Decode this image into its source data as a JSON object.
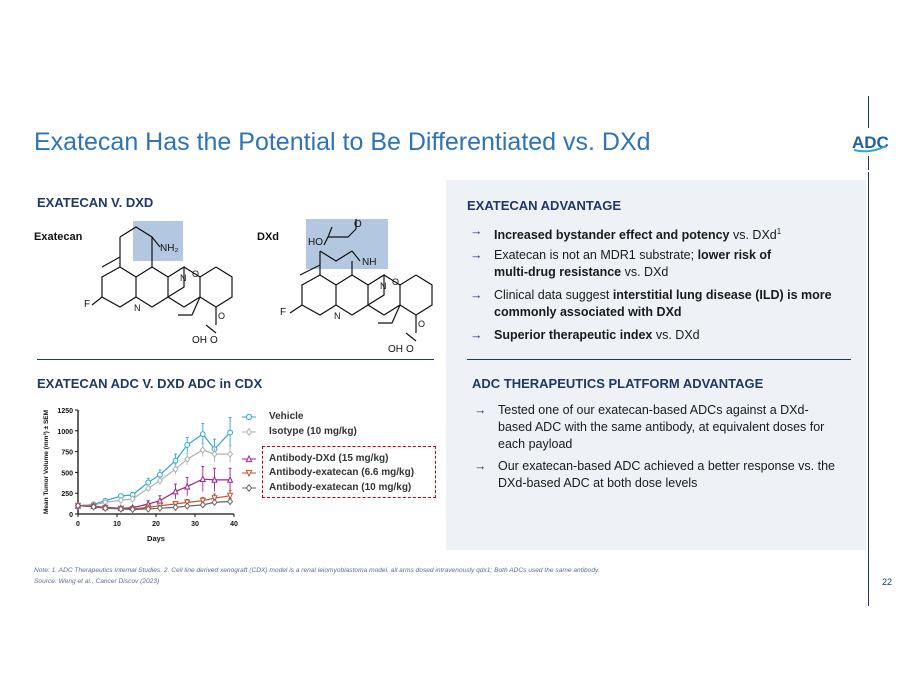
{
  "title": "Exatecan Has the Potential to Be Differentiated vs. DXd",
  "logo_text": "ADC",
  "left_top_heading": "EXATECAN V. DXD",
  "molecules": {
    "exatecan": {
      "label": "Exatecan",
      "group": "NH₂",
      "atoms": [
        "F",
        "N",
        "N",
        "O",
        "O",
        "OH",
        "O"
      ]
    },
    "dxd": {
      "label": "DXd",
      "group_ho": "HO",
      "group_o": "O",
      "group_nh": "NH",
      "atoms": [
        "F",
        "N",
        "N",
        "O",
        "O",
        "OH",
        "O"
      ]
    }
  },
  "left_bottom_heading": "EXATECAN ADC V. DXD ADC in CDX",
  "exatecan_advantage": {
    "heading": "EXATECAN ADVANTAGE",
    "items": [
      {
        "b1": "Increased bystander effect and potency",
        "t1": " vs. DXd",
        "sup": "1"
      },
      {
        "t1": "Exatecan is not an MDR1 substrate; ",
        "b1": "lower risk of multi-drug resistance",
        "t2": " vs. DXd"
      },
      {
        "t1": "Clinical data suggest ",
        "b1": "interstitial lung disease (ILD) is more commonly associated with DXd"
      },
      {
        "b1": "Superior therapeutic index",
        "t1": " vs. DXd"
      }
    ]
  },
  "platform_advantage": {
    "heading": "ADC THERAPEUTICS PLATFORM ADVANTAGE",
    "items": [
      "Tested one of our exatecan-based ADCs against a DXd-based ADC with the same antibody, at equivalent doses for each payload",
      "Our exatecan-based ADC achieved a better response vs. the DXd-based ADC at both dose levels"
    ]
  },
  "note": "Note: 1. ADC Therapeutics Internal Studies. 2. Cell line derived xenograft (CDX) model is a renal leiomyoblastoma model, all arms dosed intravenously qdx1; Both ADCs used the same antibody.",
  "source": "Source: Weng et al., Cancer Discov (2023)",
  "page_number": "22",
  "chart_data": {
    "type": "line",
    "xlabel": "Days",
    "ylabel": "Mean Tumor Volume (mm³) ± SEM",
    "xlim": [
      0,
      40
    ],
    "ylim": [
      0,
      1250
    ],
    "xticks": [
      0,
      10,
      20,
      30,
      40
    ],
    "yticks": [
      0,
      250,
      500,
      750,
      1000,
      1250
    ],
    "legend_placement": "right",
    "series": [
      {
        "name": "Vehicle",
        "color": "#2aa7d1",
        "marker": "circle",
        "x": [
          0,
          4,
          7,
          11,
          14,
          18,
          21,
          25,
          28,
          32,
          35,
          39
        ],
        "y": [
          100,
          115,
          160,
          215,
          230,
          380,
          470,
          640,
          830,
          960,
          780,
          980
        ],
        "err": [
          10,
          15,
          20,
          25,
          30,
          50,
          60,
          80,
          90,
          130,
          120,
          180
        ]
      },
      {
        "name": "Isotype (10 mg/kg)",
        "color": "#b0b0b0",
        "marker": "diamond",
        "x": [
          0,
          4,
          7,
          11,
          14,
          18,
          21,
          25,
          28,
          32,
          35,
          39
        ],
        "y": [
          100,
          110,
          140,
          165,
          180,
          310,
          400,
          540,
          660,
          770,
          720,
          720
        ],
        "err": [
          10,
          15,
          18,
          20,
          25,
          40,
          50,
          60,
          70,
          80,
          90,
          100
        ]
      },
      {
        "name": "Antibody-DXd (15 mg/kg)",
        "color": "#a0208f",
        "marker": "triangle",
        "x": [
          0,
          4,
          7,
          11,
          14,
          18,
          21,
          25,
          28,
          32,
          35,
          39
        ],
        "y": [
          100,
          95,
          80,
          70,
          75,
          120,
          160,
          270,
          330,
          420,
          410,
          410
        ],
        "err": [
          10,
          10,
          12,
          15,
          20,
          40,
          60,
          90,
          110,
          150,
          140,
          140
        ]
      },
      {
        "name": "Antibody-exatecan (6.6 mg/kg)",
        "color": "#c0502a",
        "marker": "triangle-down",
        "x": [
          0,
          4,
          7,
          11,
          14,
          18,
          21,
          25,
          28,
          32,
          35,
          39
        ],
        "y": [
          100,
          90,
          75,
          65,
          60,
          80,
          100,
          120,
          140,
          160,
          190,
          220
        ],
        "err": [
          10,
          10,
          10,
          12,
          15,
          20,
          25,
          30,
          35,
          40,
          50,
          60
        ]
      },
      {
        "name": "Antibody-exatecan (10 mg/kg)",
        "color": "#666666",
        "marker": "diamond",
        "x": [
          0,
          4,
          7,
          11,
          14,
          18,
          21,
          25,
          28,
          32,
          35,
          39
        ],
        "y": [
          100,
          85,
          70,
          60,
          55,
          60,
          70,
          80,
          95,
          110,
          140,
          150
        ],
        "err": [
          8,
          8,
          8,
          10,
          10,
          12,
          15,
          15,
          20,
          25,
          30,
          35
        ]
      }
    ]
  }
}
